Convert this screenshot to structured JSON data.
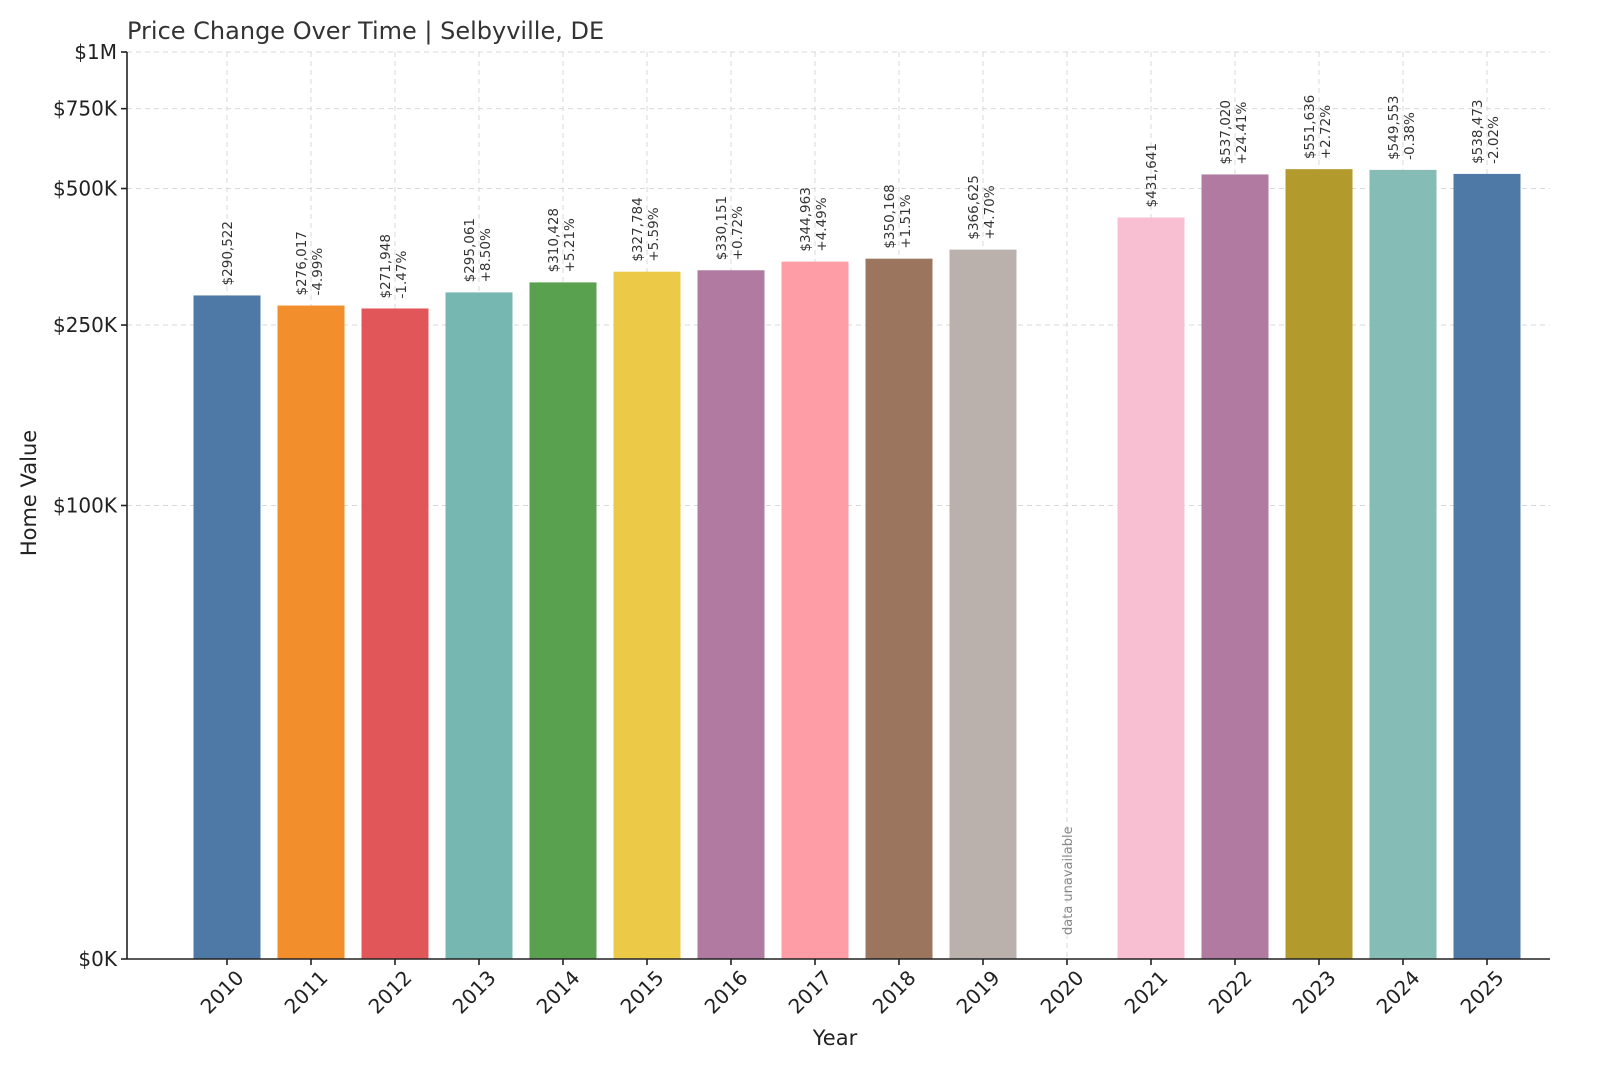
{
  "chart_data": {
    "type": "bar",
    "title": "Price Change Over Time | Selbyville, DE",
    "xlabel": "Year",
    "ylabel": "Home Value",
    "ylim": [
      0,
      1000000
    ],
    "yscale": "symlog",
    "yticks": [
      0,
      100000,
      250000,
      500000,
      750000,
      1000000
    ],
    "ytick_labels": [
      "$0K",
      "$100K",
      "$250K",
      "$500K",
      "$750K",
      "$1M"
    ],
    "grid": true,
    "categories": [
      "2010",
      "2011",
      "2012",
      "2013",
      "2014",
      "2015",
      "2016",
      "2017",
      "2018",
      "2019",
      "2020",
      "2021",
      "2022",
      "2023",
      "2024",
      "2025"
    ],
    "values": [
      290522,
      276017,
      271948,
      295061,
      310428,
      327784,
      330151,
      344963,
      350168,
      366625,
      null,
      431641,
      537020,
      551636,
      549553,
      538473
    ],
    "value_labels": [
      "$290,522",
      "$276,017",
      "$271,948",
      "$295,061",
      "$310,428",
      "$327,784",
      "$330,151",
      "$344,963",
      "$350,168",
      "$366,625",
      "",
      "$431,641",
      "$537,020",
      "$551,636",
      "$549,553",
      "$538,473"
    ],
    "change_labels": [
      "",
      "-4.99%",
      "-1.47%",
      "+8.50%",
      "+5.21%",
      "+5.59%",
      "+0.72%",
      "+4.49%",
      "+1.51%",
      "+4.70%",
      "",
      "",
      "+24.41%",
      "+2.72%",
      "-0.38%",
      "-2.02%"
    ],
    "missing_label": "data unavailable",
    "colors": [
      "#4e79a7",
      "#f28e2b",
      "#e15759",
      "#76b7b2",
      "#59a14f",
      "#edc948",
      "#b07aa1",
      "#ff9da7",
      "#9c755f",
      "#bab0ac",
      "#ffffff",
      "#f8bfd2",
      "#b07aa1",
      "#b39a2d",
      "#86bcb6",
      "#4e79a7"
    ]
  }
}
